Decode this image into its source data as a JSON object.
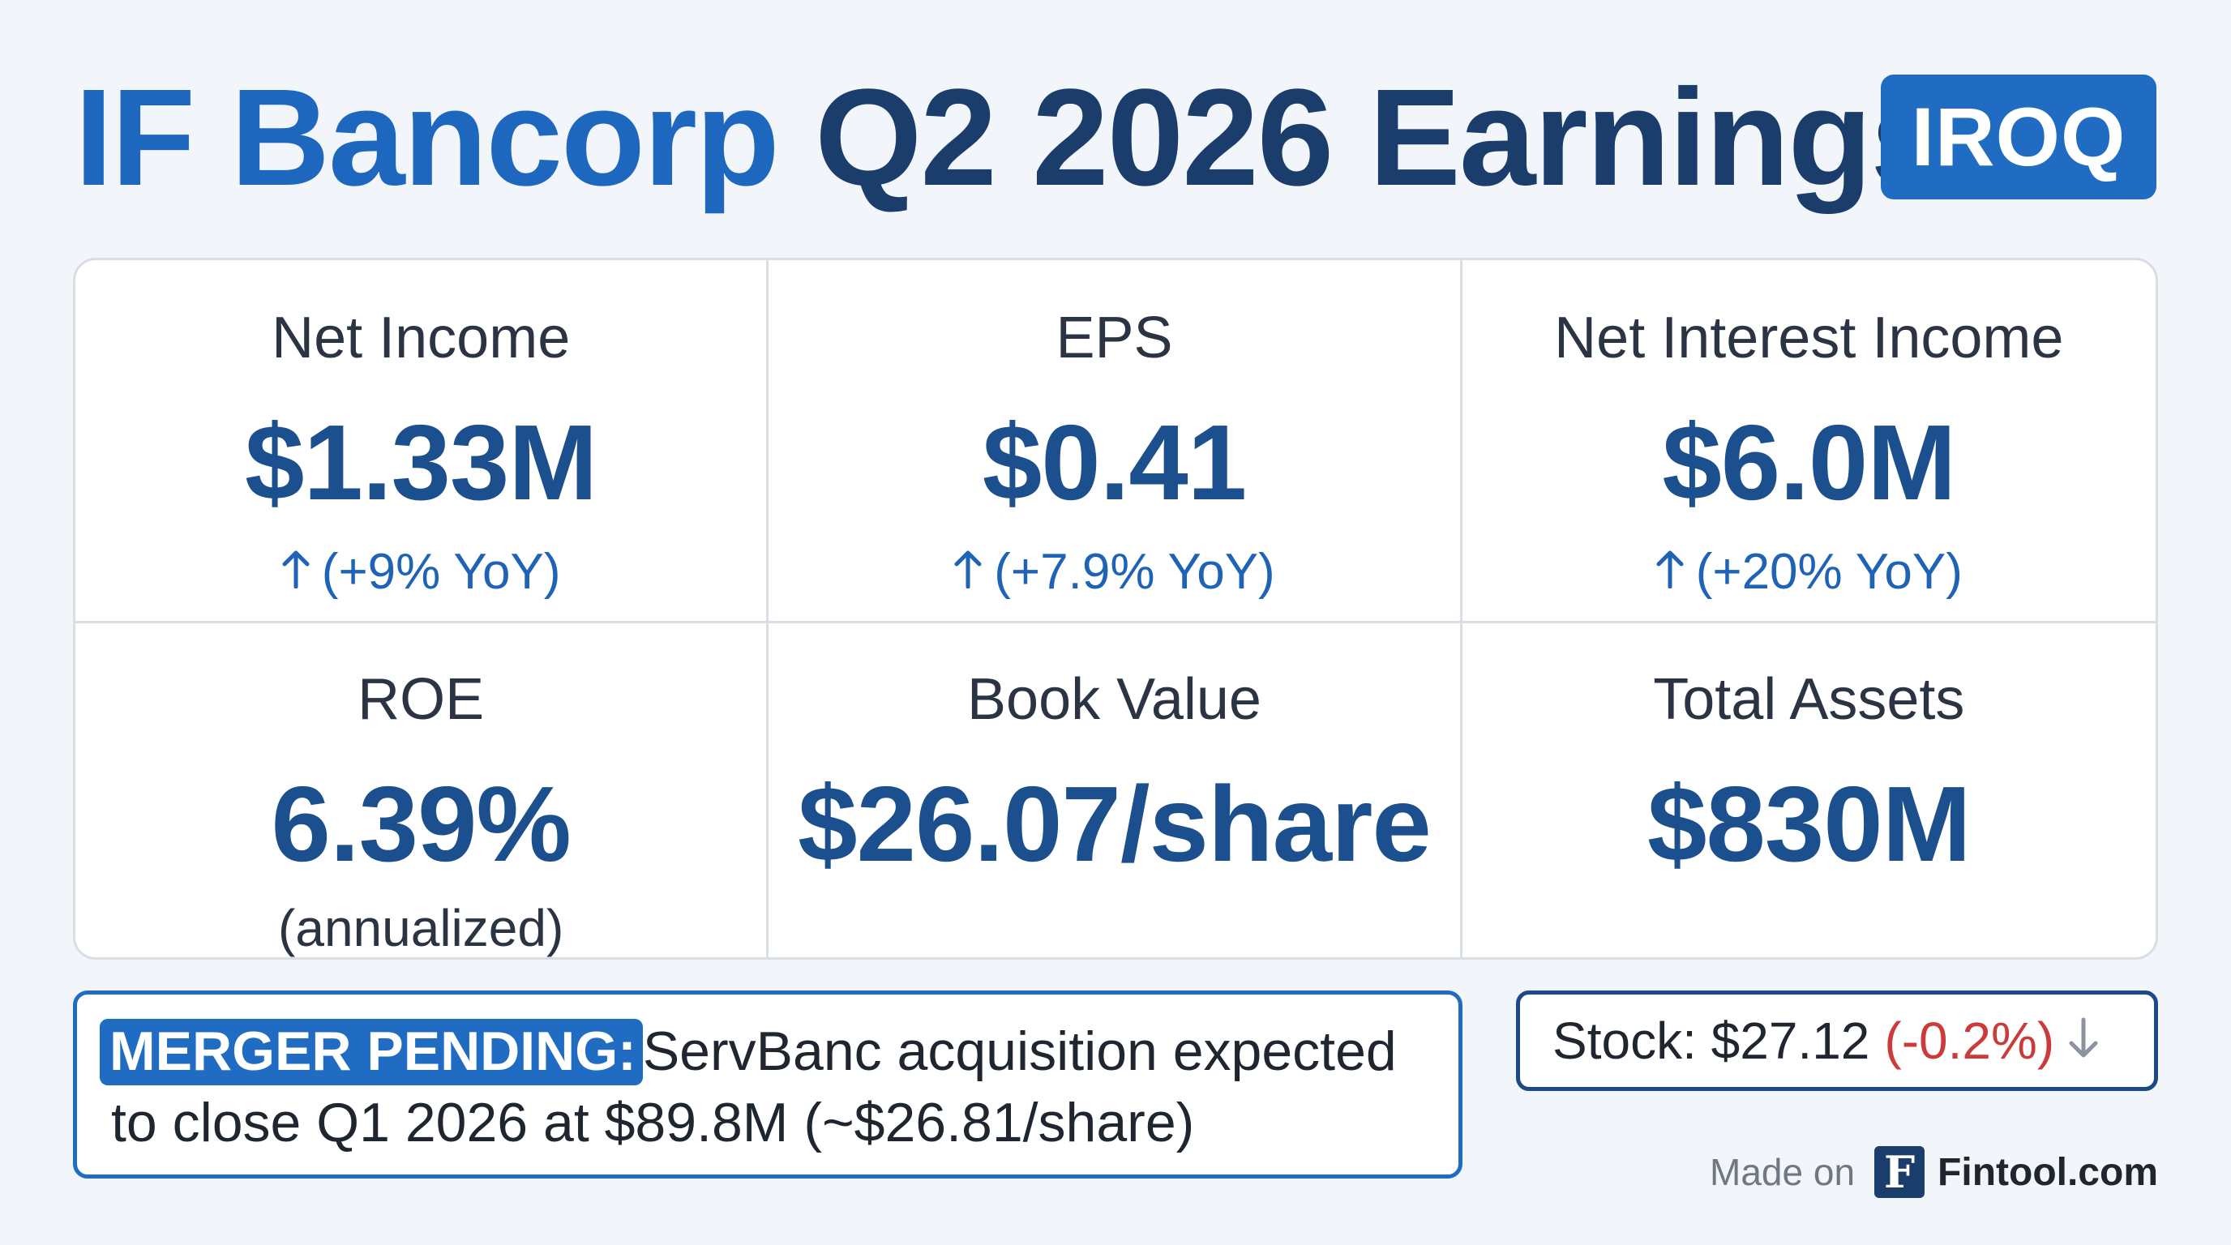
{
  "header": {
    "title_company": "IF Bancorp",
    "title_rest": "Q2 2026 Earnings",
    "ticker": "IROQ"
  },
  "metrics": [
    {
      "label": "Net Income",
      "value": "$1.33M",
      "change": "(+9% YoY)",
      "change_icon": "arrow-up-icon"
    },
    {
      "label": "EPS",
      "value": "$0.41",
      "change": "(+7.9% YoY)",
      "change_icon": "arrow-up-icon"
    },
    {
      "label": "Net Interest Income",
      "value": "$6.0M",
      "change": "(+20% YoY)",
      "change_icon": "arrow-up-icon"
    },
    {
      "label": "ROE",
      "value": "6.39%",
      "note": "(annualized)"
    },
    {
      "label": "Book Value",
      "value": "$26.07/share"
    },
    {
      "label": "Total Assets",
      "value": "$830M"
    }
  ],
  "merger": {
    "tag": "MERGER PENDING:",
    "line1": "ServBanc acquisition expected",
    "line2": "to close Q1 2026 at $89.8M (~$26.81/share)"
  },
  "stock": {
    "label": "Stock: $27.12",
    "change": "(-0.2%)",
    "arrow_icon": "arrow-down-icon"
  },
  "footer": {
    "made_on": "Made on",
    "logo_letter": "F",
    "brand": "Fintool.com"
  },
  "colors": {
    "accent_blue": "#1f6cc2",
    "navy": "#1b3d6b",
    "value_blue": "#1b4f8d",
    "negative_red": "#cc3b3b"
  }
}
